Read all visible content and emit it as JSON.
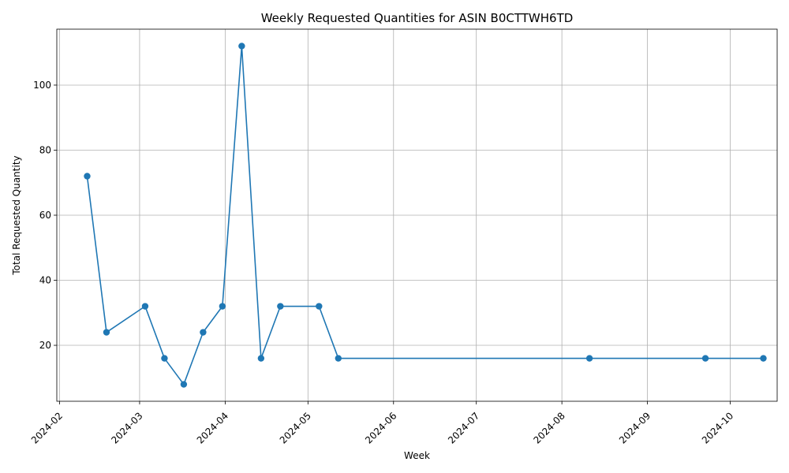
{
  "chart_data": {
    "type": "line",
    "title": "Weekly Requested Quantities for ASIN B0CTTWH6TD",
    "xlabel": "Week",
    "ylabel": "Total Requested Quantity",
    "x_ticks": [
      "2024-02",
      "2024-03",
      "2024-04",
      "2024-05",
      "2024-06",
      "2024-07",
      "2024-08",
      "2024-09",
      "2024-10"
    ],
    "y_ticks": [
      20,
      40,
      60,
      80,
      100
    ],
    "xlim": [
      "2024-01-31",
      "2024-10-18"
    ],
    "ylim": [
      2.8,
      117.2
    ],
    "grid": true,
    "series": [
      {
        "color": "#1f77b4",
        "marker": "circle",
        "points": [
          {
            "x": "2024-02-11",
            "y": 72
          },
          {
            "x": "2024-02-18",
            "y": 24
          },
          {
            "x": "2024-03-03",
            "y": 32
          },
          {
            "x": "2024-03-10",
            "y": 16
          },
          {
            "x": "2024-03-17",
            "y": 8
          },
          {
            "x": "2024-03-24",
            "y": 24
          },
          {
            "x": "2024-03-31",
            "y": 32
          },
          {
            "x": "2024-04-07",
            "y": 112
          },
          {
            "x": "2024-04-14",
            "y": 16
          },
          {
            "x": "2024-04-21",
            "y": 32
          },
          {
            "x": "2024-05-05",
            "y": 32
          },
          {
            "x": "2024-05-12",
            "y": 16
          },
          {
            "x": "2024-08-11",
            "y": 16
          },
          {
            "x": "2024-09-22",
            "y": 16
          },
          {
            "x": "2024-10-13",
            "y": 16
          }
        ]
      }
    ]
  }
}
